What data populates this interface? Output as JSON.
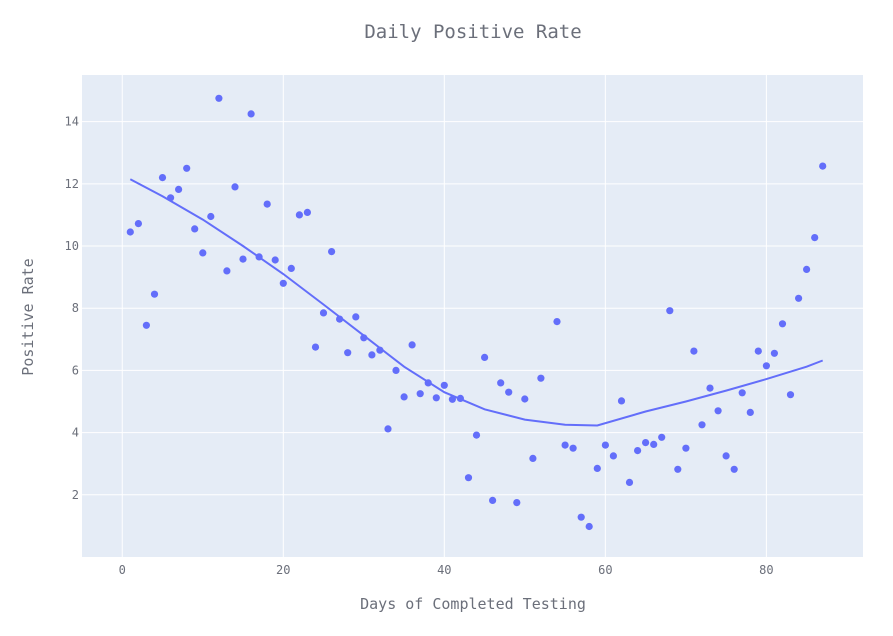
{
  "chart_data": {
    "type": "scatter",
    "title": "Daily Positive Rate",
    "xlabel": "Days of Completed Testing",
    "ylabel": "Positive Rate",
    "xlim": [
      -5,
      92
    ],
    "ylim": [
      0,
      15.5
    ],
    "x_ticks": [
      0,
      20,
      40,
      60,
      80
    ],
    "y_ticks": [
      2,
      4,
      6,
      8,
      10,
      12,
      14
    ],
    "grid": true,
    "colors": {
      "points": "#636efa",
      "trend": "#636efa",
      "plot_bg": "#e5ecf6",
      "grid": "#ffffff"
    },
    "series": [
      {
        "mode": "markers",
        "x": [
          1,
          2,
          3,
          4,
          5,
          6,
          7,
          8,
          9,
          10,
          11,
          12,
          13,
          14,
          15,
          16,
          17,
          18,
          19,
          20,
          21,
          22,
          23,
          24,
          25,
          26,
          27,
          28,
          29,
          30,
          31,
          32,
          33,
          34,
          35,
          36,
          37,
          38,
          39,
          40,
          41,
          42,
          43,
          44,
          45,
          46,
          47,
          48,
          49,
          50,
          51,
          52,
          54,
          55,
          56,
          57,
          58,
          59,
          60,
          61,
          62,
          63,
          64,
          65,
          66,
          67,
          68,
          69,
          70,
          71,
          72,
          73,
          74,
          75,
          76,
          77,
          78,
          79,
          80,
          81,
          82,
          83,
          84,
          85,
          86,
          87
        ],
        "y": [
          10.45,
          10.72,
          7.45,
          8.45,
          12.2,
          11.55,
          11.82,
          12.5,
          10.55,
          9.78,
          10.95,
          14.75,
          9.2,
          11.9,
          9.58,
          14.25,
          9.65,
          11.35,
          9.55,
          8.8,
          9.28,
          11.0,
          11.08,
          6.75,
          7.85,
          9.82,
          7.65,
          6.57,
          7.72,
          7.05,
          6.5,
          6.65,
          4.12,
          6.0,
          5.15,
          6.82,
          5.25,
          5.6,
          5.12,
          5.52,
          5.07,
          5.1,
          2.55,
          3.92,
          6.42,
          1.82,
          5.6,
          5.3,
          1.75,
          5.08,
          3.17,
          5.75,
          7.57,
          3.6,
          3.5,
          1.28,
          0.98,
          2.85,
          3.6,
          3.25,
          5.02,
          2.4,
          3.42,
          3.68,
          3.62,
          3.85,
          7.92,
          2.82,
          3.5,
          6.62,
          4.25,
          5.43,
          4.7,
          3.25,
          2.82,
          5.28,
          4.65,
          6.62,
          6.15,
          6.55,
          7.5,
          5.22,
          8.32,
          9.25,
          10.27,
          12.57
        ]
      },
      {
        "mode": "lines",
        "x": [
          1,
          5,
          10,
          15,
          20,
          25,
          30,
          35,
          40,
          45,
          50,
          55,
          59,
          65,
          70,
          75,
          80,
          85,
          87
        ],
        "y": [
          12.15,
          11.6,
          10.85,
          10.0,
          9.1,
          8.12,
          7.12,
          6.12,
          5.3,
          4.75,
          4.42,
          4.25,
          4.23,
          4.68,
          5.0,
          5.35,
          5.72,
          6.12,
          6.32
        ]
      }
    ]
  }
}
